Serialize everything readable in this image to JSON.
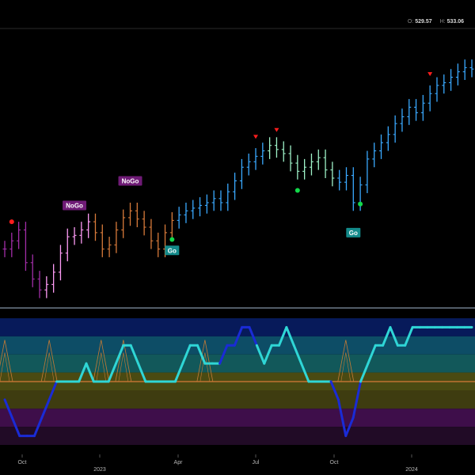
{
  "header": {
    "open_label": "O:",
    "open_value": "529.57",
    "high_label": "H:",
    "high_value": "533.06"
  },
  "colors": {
    "strong_go": "#3aa9ff",
    "weak_go": "#9ef2c8",
    "weak_nogo": "#ff9cf6",
    "strong_nogo": "#a22ea8",
    "nogo_fade": "#d77a3a",
    "go_dot": "#12d84a",
    "nogo_dot": "#ff1d1d",
    "osc_cyan": "#2fd6d6",
    "osc_blue": "#1a2bd6",
    "zero_line": "#d77a3a"
  },
  "chart_data": [
    {
      "type": "line",
      "title": "",
      "annotations": [
        "NoGo",
        "NoGo",
        "Go",
        "Go"
      ],
      "x_ticks": [
        "Oct",
        "2023",
        "Apr",
        "Jul",
        "Oct",
        "2024"
      ],
      "price_series": [
        [
          "Sep",
          398
        ],
        [
          "Sep",
          404
        ],
        [
          "Sep",
          412
        ],
        [
          "Oct",
          388
        ],
        [
          "Oct",
          376
        ],
        [
          "Oct",
          368
        ],
        [
          "Oct",
          372
        ],
        [
          "Nov",
          381
        ],
        [
          "Nov",
          395
        ],
        [
          "Nov",
          407
        ],
        [
          "Nov",
          408
        ],
        [
          "Dec",
          412
        ],
        [
          "Dec",
          418
        ],
        [
          "Dec",
          410
        ],
        [
          "Dec",
          398
        ],
        [
          "2023",
          401
        ],
        [
          "Jan",
          412
        ],
        [
          "Jan",
          421
        ],
        [
          "Jan",
          426
        ],
        [
          "Feb",
          420
        ],
        [
          "Feb",
          414
        ],
        [
          "Feb",
          404
        ],
        [
          "Mar",
          398
        ],
        [
          "Mar",
          410
        ],
        [
          "Mar",
          419
        ],
        [
          "Apr",
          423
        ],
        [
          "Apr",
          426
        ],
        [
          "Apr",
          428
        ],
        [
          "Apr",
          430
        ],
        [
          "May",
          432
        ],
        [
          "May",
          435
        ],
        [
          "May",
          432
        ],
        [
          "May",
          440
        ],
        [
          "Jun",
          448
        ],
        [
          "Jun",
          458
        ],
        [
          "Jun",
          462
        ],
        [
          "Jul",
          466
        ],
        [
          "Jul",
          470
        ],
        [
          "Jul",
          474
        ],
        [
          "Jul",
          471
        ],
        [
          "Aug",
          468
        ],
        [
          "Aug",
          461
        ],
        [
          "Aug",
          455
        ],
        [
          "Aug",
          458
        ],
        [
          "Sep",
          462
        ],
        [
          "Sep",
          465
        ],
        [
          "Sep",
          456
        ],
        [
          "Oct",
          450
        ],
        [
          "Oct",
          447
        ],
        [
          "Oct",
          452
        ],
        [
          "Oct",
          432
        ],
        [
          "Nov",
          445
        ],
        [
          "Nov",
          464
        ],
        [
          "Nov",
          470
        ],
        [
          "Nov",
          476
        ],
        [
          "Dec",
          482
        ],
        [
          "Dec",
          490
        ],
        [
          "Dec",
          495
        ],
        [
          "2024",
          502
        ],
        [
          "Jan",
          498
        ],
        [
          "Jan",
          505
        ],
        [
          "Jan",
          512
        ],
        [
          "Feb",
          518
        ],
        [
          "Feb",
          520
        ],
        [
          "Feb",
          524
        ],
        [
          "Mar",
          528
        ],
        [
          "Mar",
          531
        ],
        [
          "Mar",
          530
        ]
      ],
      "oscillator": [
        -1,
        -2,
        -3,
        -3,
        -3,
        -2,
        -1,
        0,
        0,
        0,
        0,
        1,
        0,
        0,
        0,
        1,
        2,
        2,
        1,
        0,
        0,
        0,
        0,
        0,
        1,
        2,
        2,
        1,
        1,
        1,
        2,
        2,
        3,
        3,
        2,
        1,
        2,
        2,
        3,
        2,
        1,
        0,
        0,
        0,
        0,
        -1,
        -3,
        -2,
        0,
        1,
        2,
        2,
        3,
        2,
        2,
        3,
        3,
        3,
        3,
        3,
        3,
        3,
        3,
        3
      ],
      "oscillator_bands": [
        "3",
        "2",
        "1",
        "0",
        "-1",
        "-2",
        "-3"
      ]
    }
  ],
  "bottom_axis": {
    "labels": [
      {
        "text": "Oct"
      },
      {
        "text": "2023"
      },
      {
        "text": "Apr"
      },
      {
        "text": "Jul"
      },
      {
        "text": "Oct"
      },
      {
        "text": "2024"
      }
    ]
  },
  "markers": {
    "go": "Go",
    "nogo": "NoGo"
  }
}
